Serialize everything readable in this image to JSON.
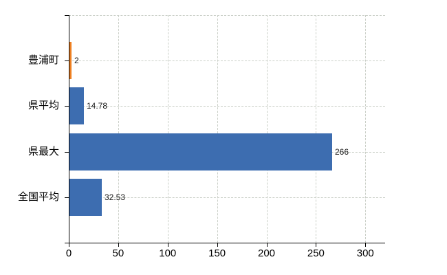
{
  "chart_data": {
    "type": "bar",
    "orientation": "horizontal",
    "title": "",
    "xlabel": "",
    "ylabel": "",
    "categories": [
      "豊浦町",
      "県平均",
      "県最大",
      "全国平均"
    ],
    "values": [
      2,
      14.78,
      266,
      32.53
    ],
    "value_labels": [
      "2",
      "14.78",
      "266",
      "32.53"
    ],
    "bar_colors": [
      "#ee8022",
      "#3d6db0",
      "#3d6db0",
      "#3d6db0"
    ],
    "xlim": [
      0,
      320
    ],
    "x_ticks": [
      0,
      50,
      100,
      150,
      200,
      250,
      300
    ],
    "x_tick_labels": [
      "0",
      "50",
      "100",
      "150",
      "200",
      "250",
      "300"
    ],
    "grid": true,
    "legend": false,
    "colors": {
      "axis": "#000000",
      "gridline": "#c9cec6",
      "background": "#ffffff",
      "text": "#000000"
    }
  }
}
